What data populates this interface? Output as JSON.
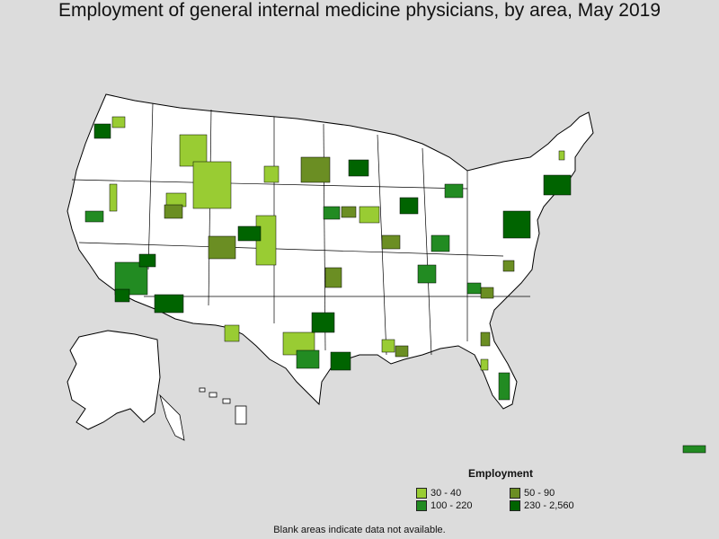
{
  "title": "Employment of general internal medicine physicians, by area, May 2019",
  "legend": {
    "title": "Employment",
    "items": [
      {
        "label": "30 - 40",
        "color": "#99cc33"
      },
      {
        "label": "50 - 90",
        "color": "#6b8e23"
      },
      {
        "label": "100 - 220",
        "color": "#228b22"
      },
      {
        "label": "230 - 2,560",
        "color": "#006400"
      }
    ]
  },
  "footnote": "Blank areas indicate data not available.",
  "colors": {
    "background": "#dcdcdc",
    "land": "#ffffff",
    "border": "#000000"
  }
}
